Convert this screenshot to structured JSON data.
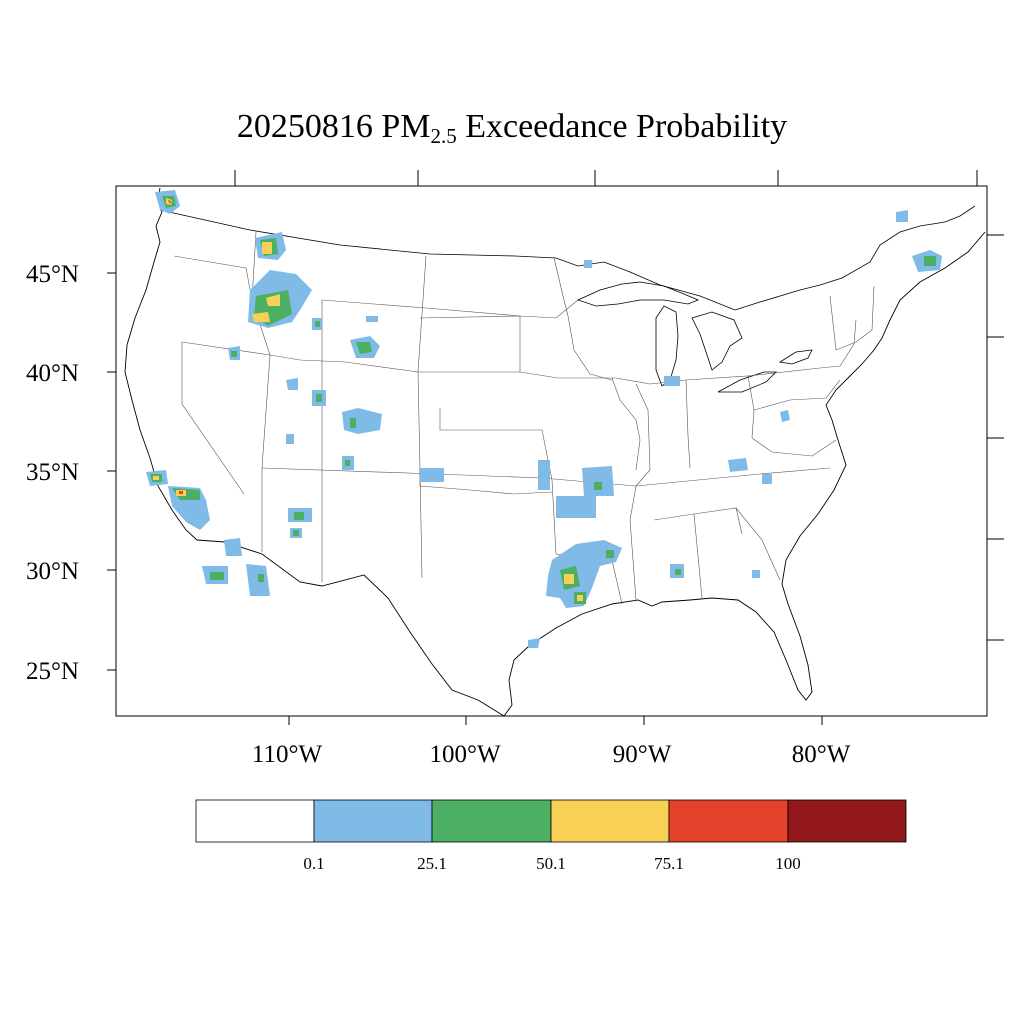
{
  "title": {
    "prefix": "20250816 PM",
    "subscript": "2.5",
    "suffix": " Exceedance Probability"
  },
  "axes": {
    "lat_labels": [
      "45°N",
      "40°N",
      "35°N",
      "30°N",
      "25°N"
    ],
    "lon_labels": [
      "110°W",
      "100°W",
      "90°W",
      "80°W"
    ]
  },
  "colorbar": {
    "tick_labels": [
      "0.1",
      "25.1",
      "50.1",
      "75.1",
      "100"
    ],
    "bins": [
      {
        "range": "0-0.1",
        "color": "#ffffff"
      },
      {
        "range": "0.1-25.1",
        "color": "#7fbbe6"
      },
      {
        "range": "25.1-50.1",
        "color": "#4caf63"
      },
      {
        "range": "50.1-75.1",
        "color": "#f8d055"
      },
      {
        "range": "75.1-100",
        "color": "#e2432a"
      },
      {
        "range": ">100",
        "color": "#92181c"
      }
    ]
  },
  "colors": {
    "low": "#7fbbe6",
    "moderate": "#4caf63",
    "high": "#f8d055",
    "very_high": "#e2432a",
    "extreme": "#92181c",
    "outline": "#000000"
  }
}
